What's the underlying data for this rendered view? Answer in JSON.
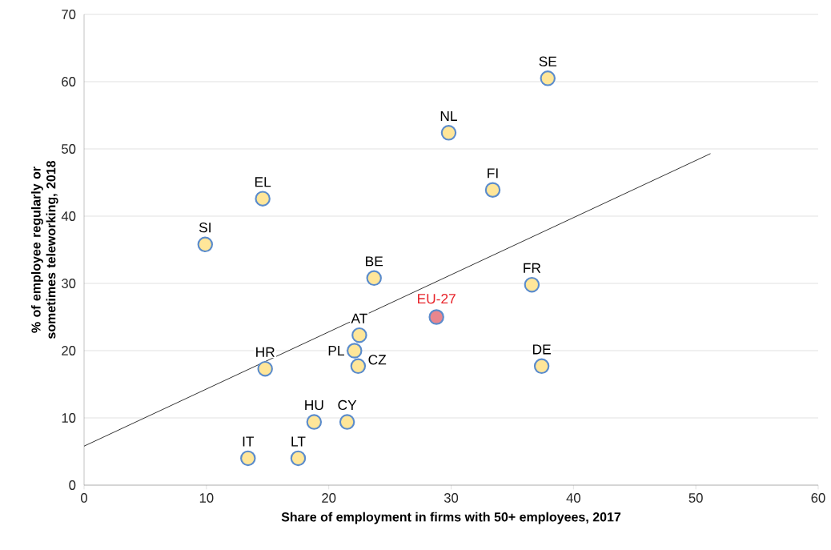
{
  "chart_data": {
    "type": "scatter",
    "xlabel": "Share of employment in firms with 50+ employees, 2017",
    "ylabel": "% of employee regularly or sometimes teleworking, 2018",
    "series": [
      {
        "marker": "circle",
        "color": "#ffe699",
        "x": [
          37.9,
          29.8,
          33.4,
          14.6,
          9.9,
          23.7,
          36.6,
          22.5,
          22.1,
          22.4,
          14.8,
          37.4,
          18.8,
          21.5,
          13.4,
          17.5
        ],
        "values": [
          60.5,
          52.4,
          43.9,
          42.6,
          35.8,
          30.8,
          29.8,
          22.3,
          20.0,
          17.7,
          17.3,
          17.7,
          9.4,
          9.4,
          4.0,
          4.0
        ]
      },
      {
        "name": "EU-27",
        "marker": "circle",
        "color": "#e8868e",
        "x": [
          28.8
        ],
        "values": [
          25.0
        ]
      },
      {
        "type": "line",
        "marker": "none",
        "color": "#000000",
        "x": [
          0,
          51.2
        ],
        "values": [
          5.8,
          49.3
        ]
      }
    ],
    "annotations": [
      {
        "text": "SE",
        "x": 37.9,
        "y": 60.5
      },
      {
        "text": "NL",
        "x": 29.8,
        "y": 52.4
      },
      {
        "text": "FI",
        "x": 33.4,
        "y": 43.9
      },
      {
        "text": "EL",
        "x": 14.6,
        "y": 42.6
      },
      {
        "text": "SI",
        "x": 9.9,
        "y": 35.8
      },
      {
        "text": "BE",
        "x": 23.7,
        "y": 30.8
      },
      {
        "text": "FR",
        "x": 36.6,
        "y": 29.8
      },
      {
        "text": "AT",
        "x": 22.5,
        "y": 22.3
      },
      {
        "text": "PL",
        "x": 22.1,
        "y": 20.0
      },
      {
        "text": "CZ",
        "x": 22.4,
        "y": 17.7
      },
      {
        "text": "HR",
        "x": 14.8,
        "y": 17.3
      },
      {
        "text": "DE",
        "x": 37.4,
        "y": 17.7
      },
      {
        "text": "HU",
        "x": 18.8,
        "y": 9.4
      },
      {
        "text": "CY",
        "x": 21.5,
        "y": 9.4
      },
      {
        "text": "IT",
        "x": 13.4,
        "y": 4.0
      },
      {
        "text": "LT",
        "x": 17.5,
        "y": 4.0
      }
    ],
    "xlim": [
      0,
      60
    ],
    "ylim": [
      0,
      70
    ],
    "xticks": [
      0,
      10,
      20,
      30,
      40,
      50,
      60
    ],
    "yticks": [
      0,
      10,
      20,
      30,
      40,
      50,
      60,
      70
    ],
    "grid": "y",
    "legend": false
  }
}
